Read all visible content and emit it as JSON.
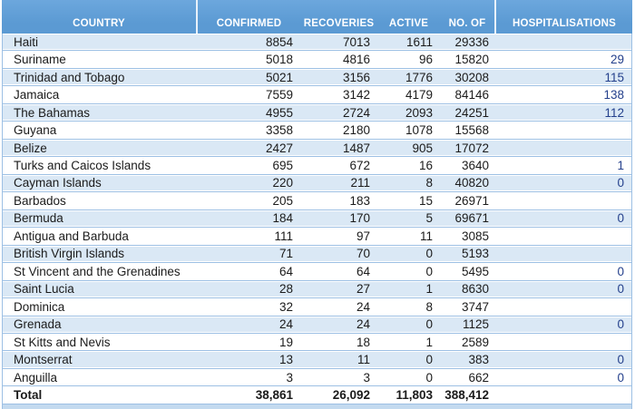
{
  "colors": {
    "header_blue": "#5B9AD3",
    "header_blue_light": "#6CA7DD",
    "header_text": "#FFFFFF",
    "band_blue": "#DAE8F5",
    "hairline": "#9DC0E4",
    "navy_value": "#24408C",
    "bottom_strip": "#C3DAEF",
    "text": "#1B1B1B",
    "header_divider": "#E8F1FA"
  },
  "table": {
    "columns": [
      {
        "key": "country",
        "label": "COUNTRY"
      },
      {
        "key": "confirmed",
        "label": "CONFIRMED"
      },
      {
        "key": "recoveries",
        "label": "RECOVERIES"
      },
      {
        "key": "active",
        "label": "ACTIVE"
      },
      {
        "key": "noof",
        "label": "NO. OF"
      },
      {
        "key": "hospitalisations",
        "label": "HOSPITALISATIONS"
      }
    ],
    "rows": [
      {
        "country": "Haiti",
        "confirmed": "8854",
        "recoveries": "7013",
        "active": "1611",
        "noof": "29336",
        "hospitalisations": ""
      },
      {
        "country": "Suriname",
        "confirmed": "5018",
        "recoveries": "4816",
        "active": "96",
        "noof": "15820",
        "hospitalisations": "29"
      },
      {
        "country": "Trinidad and Tobago",
        "confirmed": "5021",
        "recoveries": "3156",
        "active": "1776",
        "noof": "30208",
        "hospitalisations": "115"
      },
      {
        "country": "Jamaica",
        "confirmed": "7559",
        "recoveries": "3142",
        "active": "4179",
        "noof": "84146",
        "hospitalisations": "138"
      },
      {
        "country": "The Bahamas",
        "confirmed": "4955",
        "recoveries": "2724",
        "active": "2093",
        "noof": "24251",
        "hospitalisations": "112"
      },
      {
        "country": "Guyana",
        "confirmed": "3358",
        "recoveries": "2180",
        "active": "1078",
        "noof": "15568",
        "hospitalisations": ""
      },
      {
        "country": "Belize",
        "confirmed": "2427",
        "recoveries": "1487",
        "active": "905",
        "noof": "17072",
        "hospitalisations": ""
      },
      {
        "country": "Turks and Caicos Islands",
        "confirmed": "695",
        "recoveries": "672",
        "active": "16",
        "noof": "3640",
        "hospitalisations": "1"
      },
      {
        "country": "Cayman Islands",
        "confirmed": "220",
        "recoveries": "211",
        "active": "8",
        "noof": "40820",
        "hospitalisations": "0"
      },
      {
        "country": "Barbados",
        "confirmed": "205",
        "recoveries": "183",
        "active": "15",
        "noof": "26971",
        "hospitalisations": ""
      },
      {
        "country": "Bermuda",
        "confirmed": "184",
        "recoveries": "170",
        "active": "5",
        "noof": "69671",
        "hospitalisations": "0"
      },
      {
        "country": "Antigua and Barbuda",
        "confirmed": "111",
        "recoveries": "97",
        "active": "11",
        "noof": "3085",
        "hospitalisations": ""
      },
      {
        "country": "British Virgin Islands",
        "confirmed": "71",
        "recoveries": "70",
        "active": "0",
        "noof": "5193",
        "hospitalisations": ""
      },
      {
        "country": "St Vincent and the Grenadines",
        "confirmed": "64",
        "recoveries": "64",
        "active": "0",
        "noof": "5495",
        "hospitalisations": "0"
      },
      {
        "country": "Saint Lucia",
        "confirmed": "28",
        "recoveries": "27",
        "active": "1",
        "noof": "8630",
        "hospitalisations": "0"
      },
      {
        "country": "Dominica",
        "confirmed": "32",
        "recoveries": "24",
        "active": "8",
        "noof": "3747",
        "hospitalisations": ""
      },
      {
        "country": "Grenada",
        "confirmed": "24",
        "recoveries": "24",
        "active": "0",
        "noof": "1125",
        "hospitalisations": "0"
      },
      {
        "country": "St Kitts and Nevis",
        "confirmed": "19",
        "recoveries": "18",
        "active": "1",
        "noof": "2589",
        "hospitalisations": ""
      },
      {
        "country": "Montserrat",
        "confirmed": "13",
        "recoveries": "11",
        "active": "0",
        "noof": "383",
        "hospitalisations": "0"
      },
      {
        "country": "Anguilla",
        "confirmed": "3",
        "recoveries": "3",
        "active": "0",
        "noof": "662",
        "hospitalisations": "0"
      }
    ],
    "total": {
      "country": "Total",
      "confirmed": "38,861",
      "recoveries": "26,092",
      "active": "11,803",
      "noof": "388,412",
      "hospitalisations": ""
    }
  }
}
